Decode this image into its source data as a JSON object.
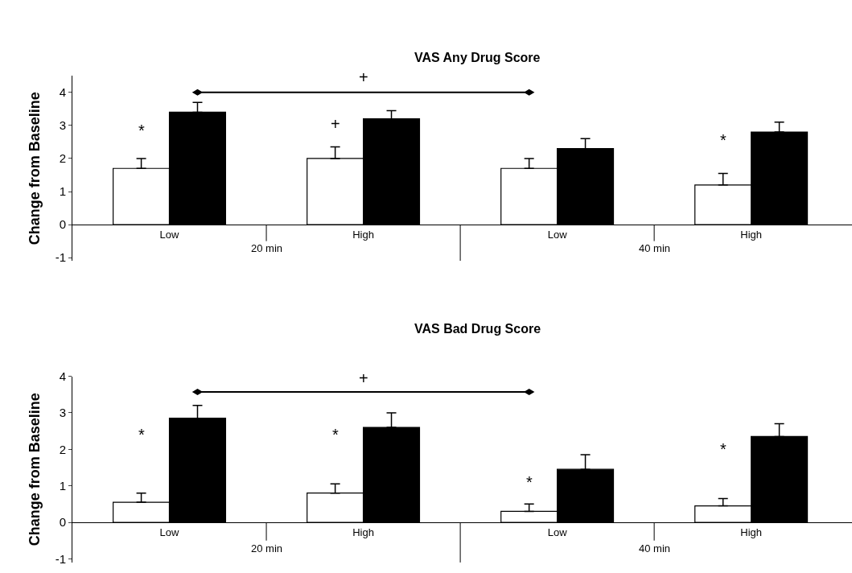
{
  "chart_data": [
    {
      "type": "bar",
      "title": "VAS Any Drug Score",
      "ylabel": "Change from Baseline",
      "categories": [
        "Low",
        "High",
        "Low",
        "High"
      ],
      "series": [
        {
          "color": "#ffffff",
          "values": [
            1.7,
            2.0,
            1.7,
            1.2
          ],
          "errors": [
            [
              1.7,
              2.0
            ],
            [
              2.0,
              2.35
            ],
            [
              1.7,
              2.0
            ],
            [
              1.2,
              1.55
            ]
          ]
        },
        {
          "color": "#000000",
          "values": [
            3.4,
            3.2,
            2.3,
            2.8
          ],
          "errors": [
            [
              3.4,
              3.7
            ],
            [
              3.2,
              3.45
            ],
            [
              2.3,
              2.6
            ],
            [
              2.8,
              3.1
            ]
          ]
        }
      ],
      "ylim": [
        -1.1,
        4.5
      ],
      "yticks": [
        -1,
        0,
        1,
        2,
        3,
        4
      ],
      "annotations": [
        "+",
        "*",
        "+",
        "*",
        "20 min",
        "40 min"
      ]
    },
    {
      "type": "bar",
      "title": "VAS Bad Drug Score",
      "ylabel": "Change from Baseline",
      "categories": [
        "Low",
        "High",
        "Low",
        "High"
      ],
      "series": [
        {
          "color": "#ffffff",
          "values": [
            0.55,
            0.8,
            0.3,
            0.45
          ],
          "errors": [
            [
              0.55,
              0.8
            ],
            [
              0.8,
              1.05
            ],
            [
              0.3,
              0.5
            ],
            [
              0.45,
              0.65
            ]
          ]
        },
        {
          "color": "#000000",
          "values": [
            2.85,
            2.6,
            1.45,
            2.35
          ],
          "errors": [
            [
              2.85,
              3.2
            ],
            [
              2.6,
              3.0
            ],
            [
              1.45,
              1.85
            ],
            [
              2.35,
              2.7
            ]
          ]
        }
      ],
      "ylim": [
        -1.1,
        4.0
      ],
      "yticks": [
        -1,
        0,
        1,
        2,
        3,
        4
      ],
      "annotations": [
        "+",
        "*",
        "*",
        "*",
        "*",
        "20 min",
        "40 min"
      ]
    }
  ]
}
